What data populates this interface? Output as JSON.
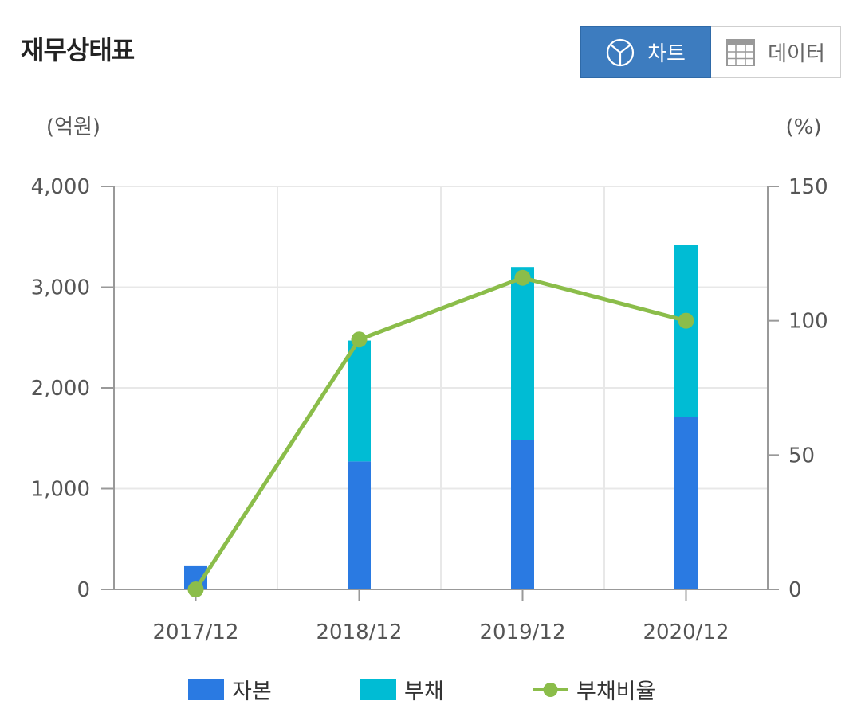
{
  "header": {
    "title": "재무상태표",
    "chart_label": "차트",
    "data_label": "데이터",
    "chart_icon": "pie-chart-icon",
    "data_icon": "table-grid-icon"
  },
  "chart_data": {
    "type": "bar",
    "stacked": true,
    "categories": [
      "2017/12",
      "2018/12",
      "2019/12",
      "2020/12"
    ],
    "y_left_unit": "(억원)",
    "y_right_unit": "(%)",
    "y_left_ticks": [
      "0",
      "1,000",
      "2,000",
      "3,000",
      "4,000"
    ],
    "y_right_ticks": [
      "0",
      "50",
      "100",
      "150"
    ],
    "ylim_left": [
      0,
      4000
    ],
    "ylim_right": [
      0,
      150
    ],
    "grid": true,
    "legend_position": "bottom",
    "series": [
      {
        "name": "자본",
        "type": "bar",
        "axis": "left",
        "color": "#2a7ae2",
        "values": [
          230,
          1270,
          1480,
          1710
        ]
      },
      {
        "name": "부채",
        "type": "bar",
        "axis": "left",
        "color": "#00bcd4",
        "values": [
          0,
          1200,
          1720,
          1710
        ]
      },
      {
        "name": "부채비율",
        "type": "line",
        "axis": "right",
        "color": "#8bbd4a",
        "values": [
          0,
          93,
          116,
          100
        ]
      }
    ]
  }
}
